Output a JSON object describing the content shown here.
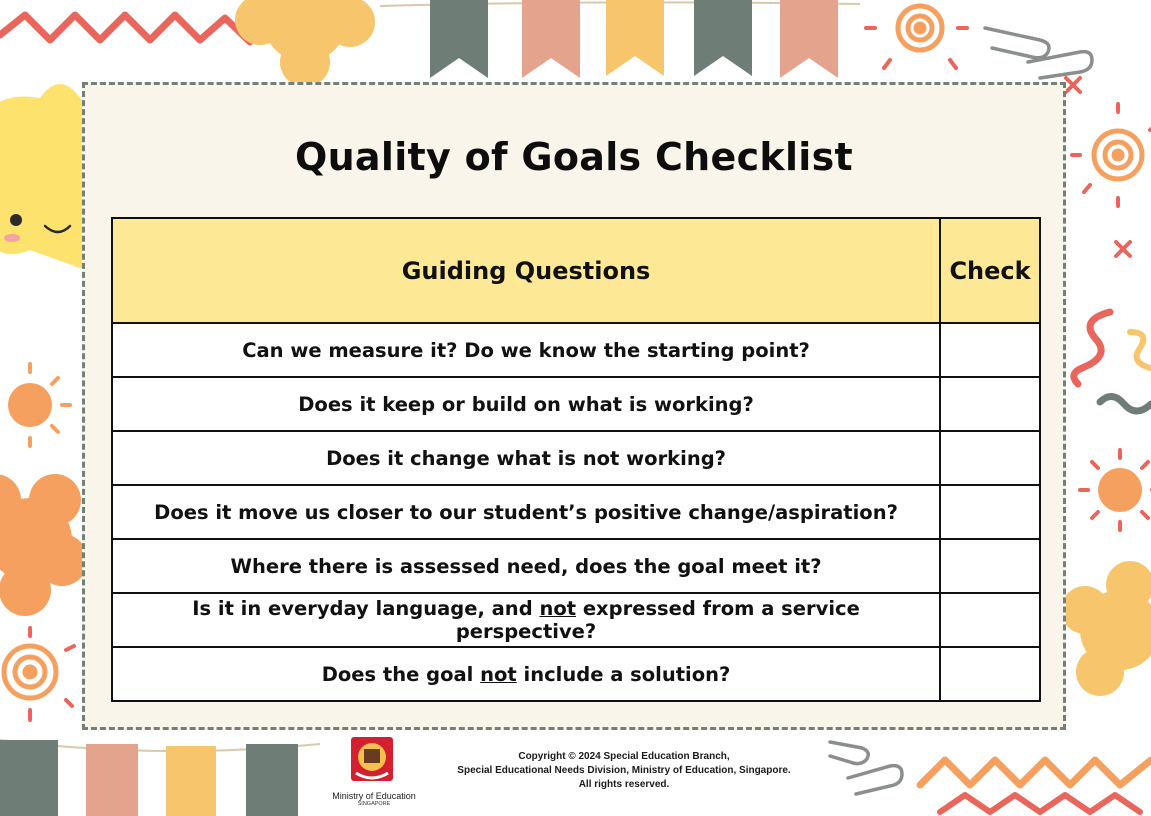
{
  "title": "Quality of Goals Checklist",
  "table": {
    "header_question": "Guiding Questions",
    "header_check": "Check",
    "rows": [
      {
        "parts": [
          {
            "text": "Can we measure it? Do we know the starting point?",
            "underline": false
          }
        ]
      },
      {
        "parts": [
          {
            "text": "Does it keep or build on what is working?",
            "underline": false
          }
        ]
      },
      {
        "parts": [
          {
            "text": "Does it change what is not working?",
            "underline": false
          }
        ]
      },
      {
        "parts": [
          {
            "text": "Does it move us closer to our student’s positive change/aspiration?",
            "underline": false
          }
        ]
      },
      {
        "parts": [
          {
            "text": "Where there is assessed need, does the goal meet it?",
            "underline": false
          }
        ]
      },
      {
        "parts": [
          {
            "text": "Is it in everyday language, and ",
            "underline": false
          },
          {
            "text": "not",
            "underline": true
          },
          {
            "text": " expressed from a service perspective?",
            "underline": false
          }
        ]
      },
      {
        "parts": [
          {
            "text": "Does the goal ",
            "underline": false
          },
          {
            "text": "not",
            "underline": true
          },
          {
            "text": " include a solution?",
            "underline": false
          }
        ]
      }
    ]
  },
  "footer": {
    "logo_name": "Ministry of Education",
    "logo_sub": "SINGAPORE",
    "copyright_line1": "Copyright © 2024 Special Education Branch,",
    "copyright_line2": "Special Educational Needs Division, Ministry of Education, Singapore.",
    "copyright_line3": "All rights reserved."
  },
  "colors": {
    "header_fill": "#fde896",
    "card_fill": "#faf5ea",
    "dashed_border": "#738076",
    "accent_orange": "#f5a05f",
    "accent_yellow": "#fbdc6a",
    "accent_red": "#e8665c",
    "accent_grey": "#6f7d77",
    "accent_pink": "#e3a38d"
  },
  "icons": [
    "star-mascot-icon",
    "sun-icon",
    "spiral-icon",
    "flower-icon",
    "bunting-flag-icon",
    "paperclip-icon",
    "zigzag-icon",
    "cross-icon",
    "moe-crest-icon"
  ]
}
